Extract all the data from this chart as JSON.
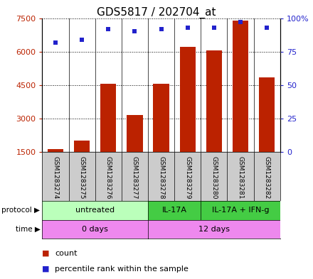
{
  "title": "GDS5817 / 202704_at",
  "samples": [
    "GSM1283274",
    "GSM1283275",
    "GSM1283276",
    "GSM1283277",
    "GSM1283278",
    "GSM1283279",
    "GSM1283280",
    "GSM1283281",
    "GSM1283282"
  ],
  "counts": [
    1620,
    2000,
    4550,
    3150,
    4550,
    6200,
    6050,
    7400,
    4850
  ],
  "percentiles": [
    82,
    84,
    92,
    90,
    92,
    93,
    93,
    97,
    93
  ],
  "ylim_left": [
    1500,
    7500
  ],
  "ylim_right": [
    0,
    100
  ],
  "yticks_left": [
    1500,
    3000,
    4500,
    6000,
    7500
  ],
  "yticks_right": [
    0,
    25,
    50,
    75,
    100
  ],
  "bar_color": "#bb2200",
  "dot_color": "#2222cc",
  "bar_width": 0.6,
  "sample_box_color": "#cccccc",
  "legend_count_color": "#bb2200",
  "legend_pct_color": "#2222cc",
  "proto_groups": [
    {
      "label": "untreated",
      "start": 0,
      "end": 3,
      "color": "#bbffbb"
    },
    {
      "label": "IL-17A",
      "start": 4,
      "end": 5,
      "color": "#44cc44"
    },
    {
      "label": "IL-17A + IFN-g",
      "start": 6,
      "end": 8,
      "color": "#44cc44"
    }
  ],
  "time_groups": [
    {
      "label": "0 days",
      "start": 0,
      "end": 3,
      "color": "#ee88ee"
    },
    {
      "label": "12 days",
      "start": 4,
      "end": 8,
      "color": "#ee88ee"
    }
  ]
}
